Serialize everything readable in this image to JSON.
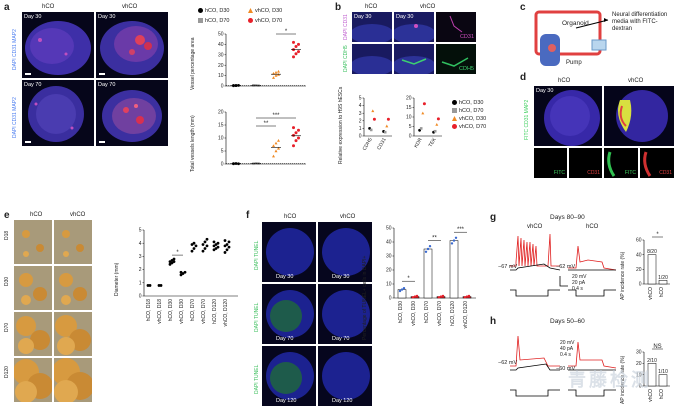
{
  "panels": {
    "a": {
      "letter": "a",
      "cols": [
        "hCO",
        "vhCO"
      ],
      "days": [
        "Day 30",
        "Day 70"
      ],
      "stain": "DAPI CD31 MAP2",
      "legend": [
        "hCO, D30",
        "hCO, D70",
        "vhCO, D30",
        "vhCO, D70"
      ],
      "chart1": {
        "ylabel": "Vessel percentage area",
        "ticks": [
          "0",
          "10",
          "20",
          "30",
          "40",
          "50"
        ],
        "sig": "*"
      },
      "chart2": {
        "ylabel": "Total vessels length (mm)",
        "ticks": [
          "0",
          "5",
          "10",
          "15",
          "20"
        ],
        "sig": [
          "**",
          "***"
        ]
      }
    },
    "b": {
      "letter": "b",
      "cols": [
        "hCO",
        "vhCO"
      ],
      "day": "Day 30",
      "stain1": "DAPI CD31",
      "stain2": "DAPI CDH5",
      "marker1": "CD31",
      "marker2": "CDH5",
      "ylabel": "Relative expression to H9S hESCs",
      "xcats1": [
        "CDH5",
        "CD31"
      ],
      "xcats2": [
        "KDR",
        "TEK"
      ],
      "ticks1": [
        "0",
        "1",
        "2",
        "3",
        "4",
        "5"
      ],
      "ticks2": [
        "0",
        "5",
        "10",
        "15",
        "20"
      ],
      "legend": [
        "hCO, D30",
        "hCO, D70",
        "vhCO, D30",
        "vhCO, D70"
      ]
    },
    "c": {
      "letter": "c",
      "organoid": "Organoid",
      "media": "Neural differentiation media with FITC-dextran",
      "pump": "Pump"
    },
    "d": {
      "letter": "d",
      "cols": [
        "hCO",
        "vhCO"
      ],
      "day": "Day 30",
      "stain": "FITC CD31 MAP2",
      "insets": [
        "FITC",
        "CD31",
        "FITC",
        "CD31"
      ]
    },
    "e": {
      "letter": "e",
      "cols": [
        "hCO",
        "vhCO"
      ],
      "rows": [
        "D18",
        "D30",
        "D70",
        "D120"
      ],
      "ylabel": "Diameter (mm)",
      "ticks": [
        "0",
        "1",
        "2",
        "3",
        "4",
        "5"
      ],
      "xcats": [
        "hCO, D18",
        "vhCO, D18",
        "hCO, D30",
        "vhCO, D30",
        "hCO, D70",
        "vhCO, D70",
        "hCO, D120",
        "vhCO, D120"
      ],
      "sig": "*"
    },
    "f": {
      "letter": "f",
      "cols": [
        "hCO",
        "vhCO"
      ],
      "days": [
        "Day 30",
        "Day 70",
        "Day 120"
      ],
      "stain": "DAPI TUNEL",
      "ylabel": "Percentage of TUNEL+ cells in DAPI+",
      "ticks": [
        "0",
        "10",
        "20",
        "30",
        "40",
        "50"
      ],
      "xcats": [
        "hCO, D30",
        "vhCO, D30",
        "hCO, D70",
        "vhCO, D70",
        "hCO, D120",
        "vhCO, D120"
      ],
      "sig": [
        "*",
        "**",
        "***"
      ]
    },
    "g": {
      "letter": "g",
      "title": "Days 80–90",
      "cols": [
        "vhCO",
        "hCO"
      ],
      "v1": "−67 mV",
      "v2": "−62 mV",
      "scale": [
        "20 mV",
        "20 pA",
        "0.4 s"
      ],
      "ylabel": "AP incidence rate (%)",
      "ticks": [
        "0",
        "20",
        "40",
        "60"
      ],
      "counts": [
        "8/20",
        "1/20"
      ],
      "xcats": [
        "vhCO",
        "hCO"
      ],
      "sig": "*"
    },
    "h": {
      "letter": "h",
      "title": "Days 50–60",
      "v1": "−62 mV",
      "v2": "−60 mV",
      "scale": [
        "20 mV",
        "40 pA",
        "0.4 s"
      ],
      "ylabel": "AP incidence rate (%)",
      "ticks": [
        "0",
        "10",
        "20",
        "30"
      ],
      "counts": [
        "2/10",
        "1/10"
      ],
      "xcats": [
        "vhCO",
        "hCO"
      ],
      "sig": "NS"
    }
  },
  "watermark": "青藤检测",
  "chart_data": [
    {
      "type": "scatter",
      "panel": "a-top",
      "ylabel": "Vessel percentage area",
      "ylim": [
        0,
        50
      ],
      "series": [
        {
          "name": "hCO, D30",
          "values": [
            0.5,
            0.4,
            0.6,
            0.3,
            0.5
          ]
        },
        {
          "name": "hCO, D70",
          "values": [
            0.4,
            0.5,
            0.3,
            0.6
          ]
        },
        {
          "name": "vhCO, D30",
          "values": [
            8,
            10,
            11,
            12,
            13,
            14
          ]
        },
        {
          "name": "vhCO, D70",
          "values": [
            28,
            31,
            33,
            35,
            38,
            40,
            42
          ]
        }
      ]
    },
    {
      "type": "scatter",
      "panel": "a-bottom",
      "ylabel": "Total vessels length (mm)",
      "ylim": [
        0,
        20
      ],
      "series": [
        {
          "name": "hCO, D30",
          "values": [
            0.1,
            0.2,
            0.1,
            0.15
          ]
        },
        {
          "name": "hCO, D70",
          "values": [
            0.1,
            0.2,
            0.15
          ]
        },
        {
          "name": "vhCO, D30",
          "values": [
            3,
            5,
            6,
            7,
            8,
            9
          ]
        },
        {
          "name": "vhCO, D70",
          "values": [
            7,
            9,
            10,
            11,
            12,
            13,
            14
          ]
        }
      ]
    },
    {
      "type": "scatter",
      "panel": "b-left",
      "ylim": [
        0,
        5
      ],
      "categories": [
        "CDH5",
        "CD31"
      ],
      "series": [
        {
          "name": "hCO, D30",
          "values": [
            1.0,
            0.6
          ]
        },
        {
          "name": "hCO, D70",
          "values": [
            0.8,
            0.5
          ]
        },
        {
          "name": "vhCO, D30",
          "values": [
            3.3,
            1.3
          ]
        },
        {
          "name": "vhCO, D70",
          "values": [
            2.2,
            2.2
          ]
        }
      ]
    },
    {
      "type": "scatter",
      "panel": "b-right",
      "ylim": [
        0,
        20
      ],
      "categories": [
        "KDR",
        "TEK"
      ],
      "series": [
        {
          "name": "hCO, D30",
          "values": [
            3,
            2
          ]
        },
        {
          "name": "hCO, D70",
          "values": [
            4,
            2.5
          ]
        },
        {
          "name": "vhCO, D30",
          "values": [
            12,
            6
          ]
        },
        {
          "name": "vhCO, D70",
          "values": [
            17,
            9
          ]
        }
      ]
    },
    {
      "type": "scatter",
      "panel": "e",
      "ylabel": "Diameter (mm)",
      "ylim": [
        0,
        5
      ],
      "categories": [
        "hCO, D18",
        "vhCO, D18",
        "hCO, D30",
        "vhCO, D30",
        "hCO, D70",
        "vhCO, D70",
        "hCO, D120",
        "vhCO, D120"
      ],
      "values": [
        [
          0.8,
          0.8
        ],
        [
          0.8,
          0.8
        ],
        [
          2.4,
          2.5,
          2.6,
          2.6,
          2.7,
          2.8
        ],
        [
          1.6,
          1.7,
          1.8,
          1.8
        ],
        [
          3.4,
          3.6,
          3.8,
          3.9,
          4.0
        ],
        [
          3.4,
          3.6,
          3.8,
          3.9,
          4.1,
          4.3
        ],
        [
          3.5,
          3.6,
          3.7,
          3.8,
          3.9,
          4.0,
          4.1
        ],
        [
          3.3,
          3.5,
          3.7,
          3.8,
          3.9,
          4.1,
          4.2
        ]
      ]
    },
    {
      "type": "bar",
      "panel": "f",
      "ylabel": "Percentage of TUNEL+ cells in DAPI+",
      "ylim": [
        0,
        50
      ],
      "categories": [
        "hCO, D30",
        "vhCO, D30",
        "hCO, D70",
        "vhCO, D70",
        "hCO, D120",
        "vhCO, D120"
      ],
      "values": [
        6,
        1,
        35,
        1,
        41,
        1
      ],
      "points": [
        [
          5,
          6,
          7
        ],
        [
          0.5,
          1,
          1.5
        ],
        [
          33,
          35,
          37
        ],
        [
          0.5,
          1,
          1.5
        ],
        [
          39,
          41,
          43
        ],
        [
          0.5,
          1,
          1.5
        ]
      ]
    },
    {
      "type": "bar",
      "panel": "g",
      "ylabel": "AP incidence rate (%)",
      "ylim": [
        0,
        60
      ],
      "categories": [
        "vhCO",
        "hCO"
      ],
      "values": [
        40,
        5
      ]
    },
    {
      "type": "bar",
      "panel": "h",
      "ylabel": "AP incidence rate (%)",
      "ylim": [
        0,
        30
      ],
      "categories": [
        "vhCO",
        "hCO"
      ],
      "values": [
        20,
        10
      ]
    }
  ]
}
